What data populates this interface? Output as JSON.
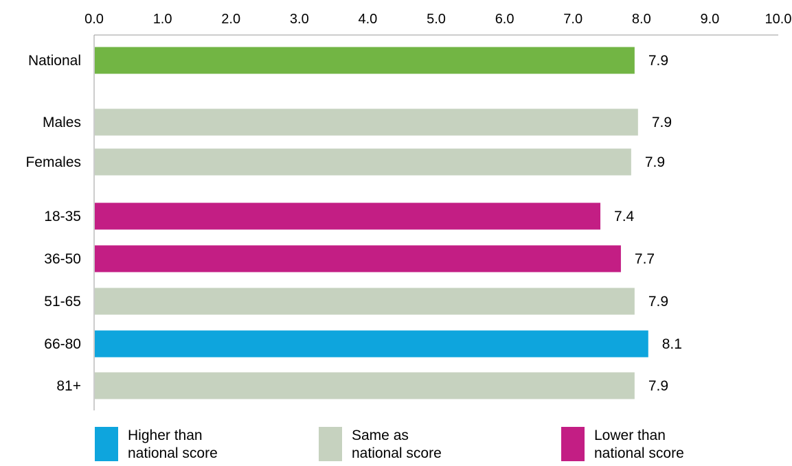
{
  "chart_data": {
    "type": "bar",
    "orientation": "horizontal",
    "xlim": [
      0,
      10
    ],
    "x_ticks": [
      "0.0",
      "1.0",
      "2.0",
      "3.0",
      "4.0",
      "5.0",
      "6.0",
      "7.0",
      "8.0",
      "9.0",
      "10.0"
    ],
    "x_axis_position": "top",
    "grid": false,
    "legend_placement": "bottom",
    "categories": [
      "National",
      "Males",
      "Females",
      "18-35",
      "36-50",
      "51-65",
      "66-80",
      "81+"
    ],
    "values": [
      7.9,
      7.95,
      7.85,
      7.4,
      7.7,
      7.9,
      8.1,
      7.9
    ],
    "value_labels": [
      "7.9",
      "7.9",
      "7.9",
      "7.4",
      "7.7",
      "7.9",
      "8.1",
      "7.9"
    ],
    "bar_groups": [
      "national",
      "same",
      "same",
      "lower",
      "lower",
      "same",
      "higher",
      "same"
    ],
    "colors": {
      "national": "#72b544",
      "higher": "#0ea5dd",
      "same": "#c6d2bf",
      "lower": "#c31e84"
    },
    "legend": [
      {
        "key": "higher",
        "label": "Higher than\nnational score"
      },
      {
        "key": "same",
        "label": "Same as\nnational score"
      },
      {
        "key": "lower",
        "label": "Lower than\nnational score"
      }
    ]
  }
}
